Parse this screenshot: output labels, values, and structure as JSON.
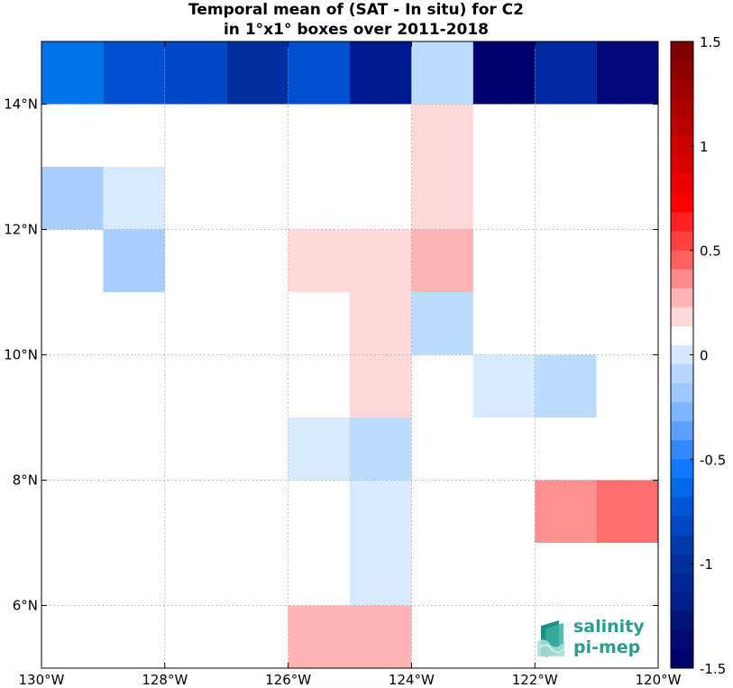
{
  "title": {
    "line1": "Temporal mean of (SAT - In situ) for C2",
    "line2": "in 1°x1° boxes over 2011-2018"
  },
  "logo": {
    "line1": "salinity",
    "line2": "pi-mep"
  },
  "chart_data": {
    "type": "heatmap",
    "title": "Temporal mean of (SAT - In situ) for C2 in 1°x1° boxes over 2011-2018",
    "xlim": [
      -130,
      -120
    ],
    "ylim": [
      5,
      15
    ],
    "x_ticks": [
      {
        "value": -130,
        "label": "130°W"
      },
      {
        "value": -128,
        "label": "128°W"
      },
      {
        "value": -126,
        "label": "126°W"
      },
      {
        "value": -124,
        "label": "124°W"
      },
      {
        "value": -122,
        "label": "122°W"
      },
      {
        "value": -120,
        "label": "120°W"
      }
    ],
    "y_ticks": [
      {
        "value": 6,
        "label": "6°N"
      },
      {
        "value": 8,
        "label": "8°N"
      },
      {
        "value": 10,
        "label": "10°N"
      },
      {
        "value": 12,
        "label": "12°N"
      },
      {
        "value": 14,
        "label": "14°N"
      }
    ],
    "grid": true,
    "grid_style": "dotted",
    "colorbar": {
      "range": [
        -1.5,
        1.5
      ],
      "ticks": [
        {
          "value": 1.5,
          "label": "1.5"
        },
        {
          "value": 1,
          "label": "1"
        },
        {
          "value": 0.5,
          "label": "0.5"
        },
        {
          "value": 0,
          "label": "0"
        },
        {
          "value": -0.5,
          "label": "-0.5"
        },
        {
          "value": -1,
          "label": "-1"
        },
        {
          "value": -1.5,
          "label": "-1.5"
        }
      ],
      "colors_top_to_bottom": [
        "#800000",
        "#8f0000",
        "#9e0000",
        "#ad0000",
        "#bc0000",
        "#cc0000",
        "#db0000",
        "#ea0000",
        "#ff0000",
        "#ff2020",
        "#ff4040",
        "#ff6060",
        "#ff8a8a",
        "#ffb4b4",
        "#ffd8d8",
        "#ffffff",
        "#d6e8ff",
        "#b7d6ff",
        "#9ec8ff",
        "#7db5ff",
        "#5aa0ff",
        "#3388ff",
        "#0f78ff",
        "#006ae6",
        "#0055d4",
        "#0047c4",
        "#003aab",
        "#00309c",
        "#002793",
        "#001f88",
        "#001577",
        "#000a70",
        "#00006a"
      ]
    },
    "cells": [
      {
        "lon": -130,
        "lat": 14,
        "value": -0.95,
        "color": "#0074e8"
      },
      {
        "lon": -129,
        "lat": 14,
        "value": -1.15,
        "color": "#0050d0"
      },
      {
        "lon": -128,
        "lat": 14,
        "value": -1.18,
        "color": "#0048c8"
      },
      {
        "lon": -127,
        "lat": 14,
        "value": -1.3,
        "color": "#0030a0"
      },
      {
        "lon": -126,
        "lat": 14,
        "value": -1.15,
        "color": "#004ed0"
      },
      {
        "lon": -125,
        "lat": 14,
        "value": -1.4,
        "color": "#001890"
      },
      {
        "lon": -124,
        "lat": 14,
        "value": -0.25,
        "color": "#bcdcff"
      },
      {
        "lon": -123,
        "lat": 14,
        "value": -1.5,
        "color": "#000070"
      },
      {
        "lon": -122,
        "lat": 14,
        "value": -1.3,
        "color": "#0028a0"
      },
      {
        "lon": -121,
        "lat": 14,
        "value": -1.48,
        "color": "#00087a"
      },
      {
        "lon": -124,
        "lat": 13,
        "value": 0.15,
        "color": "#ffd8d8"
      },
      {
        "lon": -130,
        "lat": 12,
        "value": -0.35,
        "color": "#a8ceff"
      },
      {
        "lon": -129,
        "lat": 12,
        "value": -0.15,
        "color": "#d8eaff"
      },
      {
        "lon": -124,
        "lat": 12,
        "value": 0.15,
        "color": "#ffd8d8"
      },
      {
        "lon": -129,
        "lat": 11,
        "value": -0.35,
        "color": "#a8ceff"
      },
      {
        "lon": -126,
        "lat": 11,
        "value": 0.15,
        "color": "#ffd8d8"
      },
      {
        "lon": -125,
        "lat": 11,
        "value": 0.15,
        "color": "#ffd8d8"
      },
      {
        "lon": -124,
        "lat": 11,
        "value": 0.25,
        "color": "#ffb4b4"
      },
      {
        "lon": -125,
        "lat": 10,
        "value": 0.15,
        "color": "#ffd8d8"
      },
      {
        "lon": -124,
        "lat": 10,
        "value": -0.25,
        "color": "#bcdcff"
      },
      {
        "lon": -125,
        "lat": 9,
        "value": 0.15,
        "color": "#ffd8d8"
      },
      {
        "lon": -123,
        "lat": 9,
        "value": -0.15,
        "color": "#d8eaff"
      },
      {
        "lon": -122,
        "lat": 9,
        "value": -0.25,
        "color": "#bcdcff"
      },
      {
        "lon": -126,
        "lat": 8,
        "value": -0.15,
        "color": "#d8eaff"
      },
      {
        "lon": -125,
        "lat": 8,
        "value": -0.25,
        "color": "#bcdcff"
      },
      {
        "lon": -125,
        "lat": 7,
        "value": -0.15,
        "color": "#d8eaff"
      },
      {
        "lon": -122,
        "lat": 7,
        "value": 0.35,
        "color": "#ff9090"
      },
      {
        "lon": -121,
        "lat": 7,
        "value": 0.45,
        "color": "#ff6e6e"
      },
      {
        "lon": -125,
        "lat": 6,
        "value": -0.15,
        "color": "#d8eaff"
      },
      {
        "lon": -126,
        "lat": 5,
        "value": 0.25,
        "color": "#ffb4b4"
      },
      {
        "lon": -125,
        "lat": 5,
        "value": 0.25,
        "color": "#ffb4b4"
      }
    ]
  }
}
